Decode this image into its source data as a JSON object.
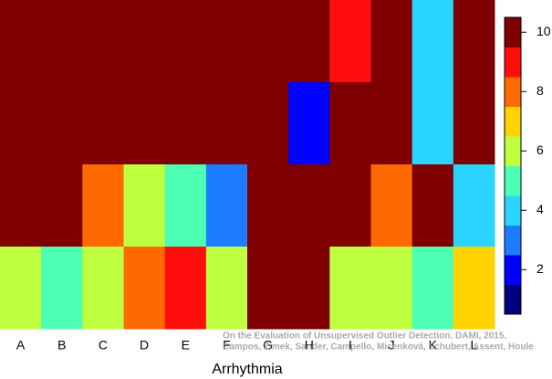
{
  "chart_data": {
    "type": "heatmap",
    "xlabel": "Arrhythmia",
    "categories": [
      "A",
      "B",
      "C",
      "D",
      "E",
      "F",
      "G",
      "H",
      "I",
      "J",
      "K",
      "L"
    ],
    "z": [
      [
        10,
        10,
        10,
        10,
        10,
        10,
        10,
        10,
        9,
        10,
        4,
        10
      ],
      [
        10,
        10,
        10,
        10,
        10,
        10,
        10,
        2,
        10,
        10,
        4,
        10
      ],
      [
        10,
        10,
        8,
        6,
        5,
        3,
        10,
        10,
        10,
        8,
        10,
        4
      ],
      [
        6,
        5,
        6,
        8,
        9,
        6,
        10,
        10,
        6,
        6,
        5,
        7
      ]
    ],
    "colors": [
      "#00007f",
      "#0000ff",
      "#1e7cff",
      "#29d4ff",
      "#4dffb2",
      "#bfff40",
      "#ffd300",
      "#ff6a00",
      "#ff0e0e",
      "#7f0000"
    ],
    "zlim": [
      0.5,
      10.5
    ],
    "zticks": [
      2,
      4,
      6,
      8,
      10
    ],
    "annotations": [
      "On the Evaluation of Unsupervised Outlier Detection. DAMI, 2015.",
      "Campos, Zimek, Sander, Campello, Micenková, Schubert, Assent, Houle"
    ]
  }
}
